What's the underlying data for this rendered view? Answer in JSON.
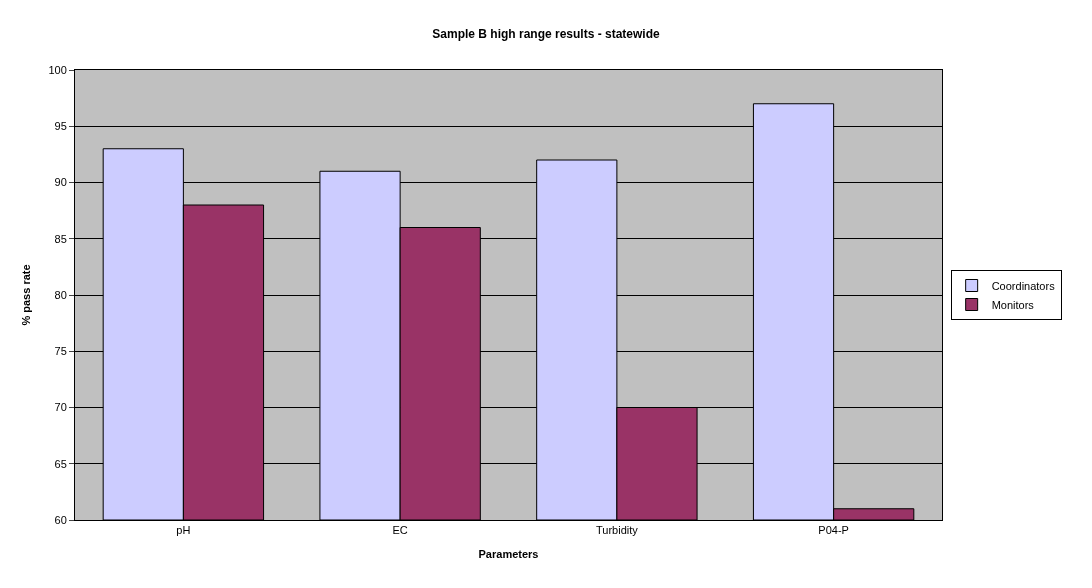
{
  "chart_data": {
    "type": "bar",
    "title": "Sample B high range results - statewide",
    "xlabel": "Parameters",
    "ylabel": "% pass rate",
    "categories": [
      "pH",
      "EC",
      "Turbidity",
      "P04-P"
    ],
    "series": [
      {
        "name": "Coordinators",
        "color": "#ccccff",
        "values": [
          93,
          91,
          92,
          97
        ]
      },
      {
        "name": "Monitors",
        "color": "#993366",
        "values": [
          88,
          86,
          70,
          61
        ]
      }
    ],
    "ylim": [
      60,
      100
    ],
    "yticks": [
      60,
      65,
      70,
      75,
      80,
      85,
      90,
      95,
      100
    ],
    "grid": "y",
    "legend": "right"
  }
}
